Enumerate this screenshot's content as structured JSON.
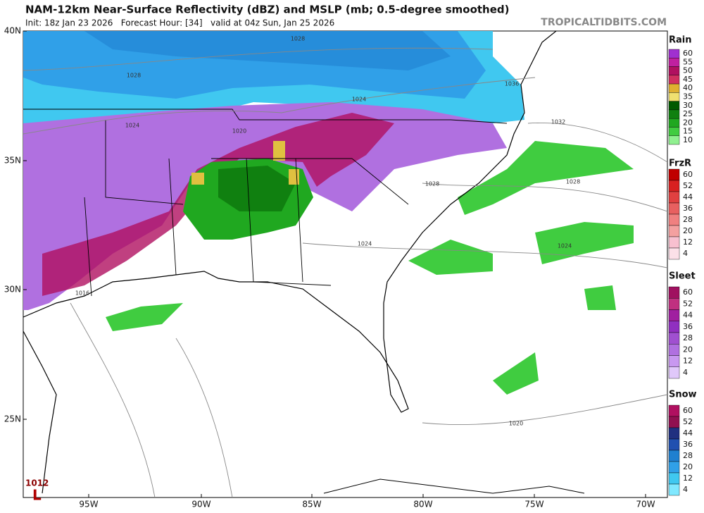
{
  "header": {
    "title": "NAM-12km Near-Surface Reflectivity (dBZ) and MSLP (mb; 0.5-degree smoothed)",
    "subtitle": "Init: 18z Jan 23 2026   Forecast Hour: [34]   valid at 04z Sun, Jan 25 2026",
    "brand": "TROPICALTIDBITS.COM"
  },
  "map": {
    "lat_labels": [
      "40N",
      "35N",
      "30N",
      "25N"
    ],
    "lon_labels": [
      "95W",
      "90W",
      "85W",
      "80W",
      "75W",
      "70W"
    ],
    "isobar_labels": [
      "1028",
      "1028",
      "1024",
      "1020",
      "1024",
      "1036",
      "1032",
      "1028",
      "1028",
      "1024",
      "1024",
      "1016",
      "1020"
    ],
    "low": {
      "pressure": "1012",
      "symbol": "L"
    }
  },
  "legend": [
    {
      "title": "Rain",
      "ticks": [
        "60",
        "55",
        "50",
        "45",
        "40",
        "35",
        "30",
        "25",
        "20",
        "15",
        "10"
      ],
      "colors": [
        "#a030d0",
        "#c020a0",
        "#b01060",
        "#d03060",
        "#e0b030",
        "#f0e070",
        "#005a00",
        "#108010",
        "#20a820",
        "#40cc40",
        "#90f090"
      ]
    },
    {
      "title": "FrzR",
      "ticks": [
        "60",
        "52",
        "44",
        "36",
        "28",
        "20",
        "12",
        "4"
      ],
      "colors": [
        "#c00000",
        "#d82020",
        "#e04040",
        "#e86060",
        "#f08080",
        "#f4a0a0",
        "#f8c0d0",
        "#fce0e8"
      ]
    },
    {
      "title": "Sleet",
      "ticks": [
        "60",
        "52",
        "44",
        "36",
        "28",
        "20",
        "12",
        "4"
      ],
      "colors": [
        "#a01060",
        "#c03080",
        "#a020a0",
        "#9030c0",
        "#a050d0",
        "#b070e0",
        "#c898f0",
        "#e0c8fa"
      ]
    },
    {
      "title": "Snow",
      "ticks": [
        "60",
        "52",
        "44",
        "36",
        "28",
        "20",
        "12",
        "4"
      ],
      "colors": [
        "#b01060",
        "#901050",
        "#203080",
        "#2050b0",
        "#2080d0",
        "#30a0e8",
        "#40c8f0",
        "#80e8ff"
      ]
    }
  ]
}
